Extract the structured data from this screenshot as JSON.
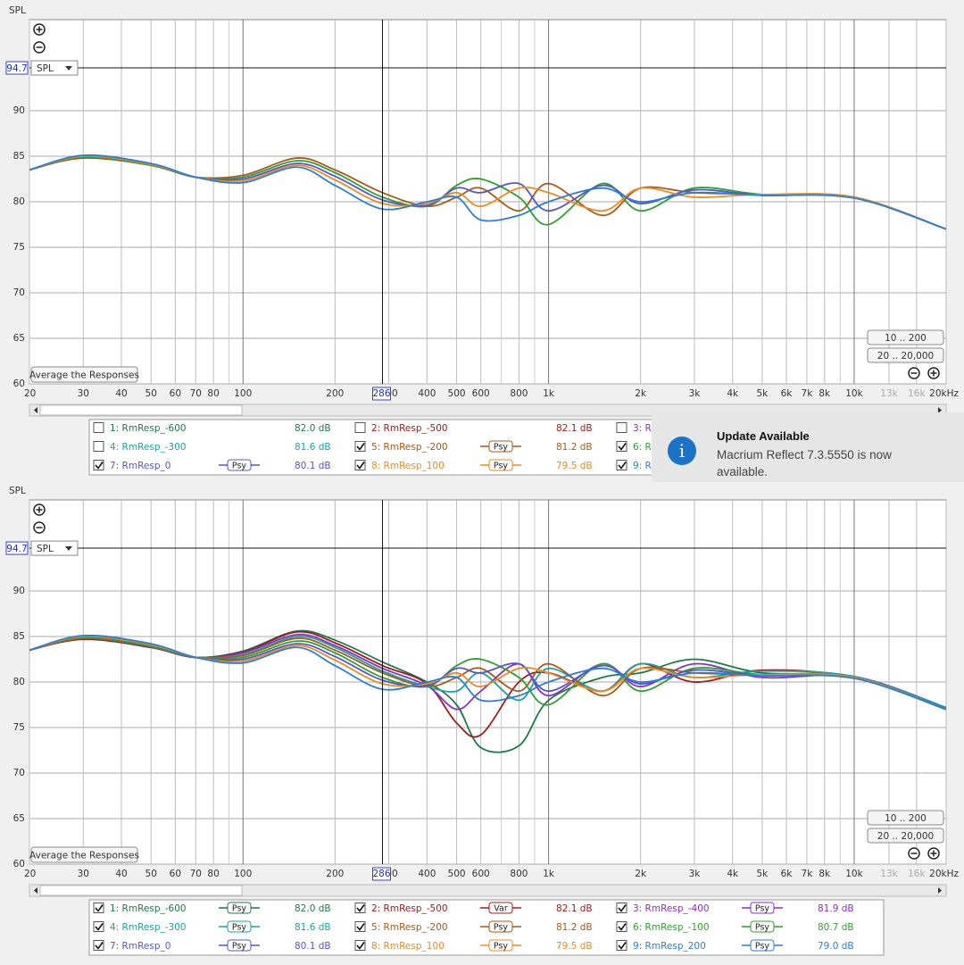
{
  "chart_data": [
    {
      "type": "line",
      "y_label": "SPL",
      "log_x": true,
      "grid": true,
      "xlim": [
        20,
        20000
      ],
      "ylim": [
        60,
        100
      ],
      "xticks": [
        20,
        30,
        40,
        50,
        60,
        70,
        80,
        100,
        200,
        300,
        400,
        500,
        600,
        800,
        {
          "value": 1000,
          "label": "1k"
        },
        {
          "value": 2000,
          "label": "2k"
        },
        {
          "value": 3000,
          "label": "3k"
        },
        {
          "value": 4000,
          "label": "4k"
        },
        {
          "value": 5000,
          "label": "5k"
        },
        {
          "value": 6000,
          "label": "6k"
        },
        {
          "value": 7000,
          "label": "7k"
        },
        {
          "value": 8000,
          "label": "8k"
        },
        {
          "value": 10000,
          "label": "10k"
        },
        {
          "value": 13000,
          "label": "13k"
        },
        {
          "value": 16000,
          "label": "16k"
        },
        {
          "value": 20000,
          "label": "20kHz"
        }
      ],
      "xgrid": [
        90,
        700,
        900,
        9000
      ],
      "yticks": [
        60,
        65,
        70,
        75,
        80,
        85,
        90
      ],
      "cursor": {
        "x": 286,
        "y": 94.7
      },
      "buttons": {
        "y_select": "SPL",
        "average": "Average the Responses",
        "range_low": "10 .. 200",
        "range_full": "20 .. 20,000"
      },
      "x": [
        20,
        30,
        50,
        70,
        100,
        150,
        200,
        286,
        400,
        500,
        600,
        800,
        1000,
        1500,
        2000,
        3000,
        5000,
        10000,
        20000
      ],
      "series": [
        {
          "name": "1: RmResp_-600",
          "color": "#1e7a4a",
          "checked": false,
          "reading": "82.0 dB",
          "values": [
            83.5,
            84.7,
            83.8,
            82.7,
            83.4,
            85.6,
            84.6,
            82.2,
            80,
            77.5,
            72.8,
            73,
            78,
            80.5,
            81,
            82.5,
            81,
            80.6,
            77
          ]
        },
        {
          "name": "2: RmResp_-500",
          "color": "#a01c1c",
          "checked": false,
          "reading": "82.1 dB",
          "values": [
            83.5,
            84.7,
            83.8,
            82.7,
            83.3,
            85.5,
            84.3,
            81.8,
            79.8,
            75.5,
            74.2,
            80,
            81,
            79,
            82,
            80,
            81.3,
            80.5,
            77
          ]
        },
        {
          "name": "3: RmResp_-400",
          "color": "#8b2fc9",
          "checked": false,
          "reading": "81.9 dB",
          "values": [
            83.5,
            84.8,
            83.9,
            82.7,
            83.2,
            85.2,
            84,
            81.5,
            79.6,
            77,
            79,
            82,
            78.5,
            82,
            79.5,
            82,
            80.5,
            80.6,
            77.2
          ]
        },
        {
          "name": "4: RmResp_-300",
          "color": "#1aa3a3",
          "checked": false,
          "reading": "81.6 dB",
          "values": [
            83.5,
            84.8,
            83.9,
            82.7,
            83,
            85,
            83.8,
            81.2,
            79.5,
            79,
            81,
            78,
            81.5,
            79,
            82,
            80.5,
            81.2,
            80.6,
            77.2
          ]
        },
        {
          "name": "5: RmResp_-200",
          "color": "#a85a18",
          "checked": true,
          "smoothing": "Psy",
          "reading": "81.2 dB",
          "values": [
            83.5,
            84.8,
            84,
            82.7,
            82.9,
            84.8,
            83.5,
            81,
            79.5,
            80.5,
            81.5,
            79,
            82,
            78.5,
            81.5,
            81,
            80.8,
            80.5,
            77
          ]
        },
        {
          "name": "6: RmResp_-100",
          "color": "#2fa02f",
          "checked": true,
          "smoothing": "Psy",
          "reading": "80.7 dB",
          "values": [
            83.5,
            84.9,
            84,
            82.7,
            82.7,
            84.5,
            83.2,
            80.5,
            79.5,
            81.8,
            82.5,
            80.5,
            77.5,
            82,
            79,
            81.5,
            80.8,
            80.5,
            77
          ]
        },
        {
          "name": "7: RmResp_0",
          "color": "#5555cc",
          "checked": true,
          "smoothing": "Psy",
          "reading": "80.1 dB",
          "values": [
            83.5,
            85,
            84.1,
            82.7,
            82.5,
            84.2,
            82.8,
            80.2,
            79.6,
            81.5,
            81,
            82,
            79,
            81.8,
            79.8,
            81.3,
            80.7,
            80.5,
            77
          ]
        },
        {
          "name": "8: RmResp_100",
          "color": "#ee8a22",
          "checked": true,
          "smoothing": "Psy",
          "reading": "79.5 dB",
          "values": [
            83.5,
            85,
            84.1,
            82.7,
            82.3,
            84,
            82.4,
            79.8,
            79.8,
            81,
            79.5,
            81.5,
            81,
            79,
            81.5,
            80.5,
            80.8,
            80.5,
            77
          ]
        },
        {
          "name": "9: RmResp_200",
          "color": "#2a7fd4",
          "checked": true,
          "smoothing": "Psy",
          "reading": "79.0 dB",
          "values": [
            83.5,
            85.1,
            84.2,
            82.7,
            82.1,
            83.8,
            81.8,
            79.2,
            80,
            80.5,
            78,
            78.5,
            80,
            81.5,
            80,
            81,
            80.7,
            80.4,
            77
          ]
        }
      ]
    },
    {
      "type": "line",
      "y_label": "SPL",
      "log_x": true,
      "grid": true,
      "xlim": [
        20,
        20000
      ],
      "ylim": [
        60,
        100
      ],
      "xticks": [
        20,
        30,
        40,
        50,
        60,
        70,
        80,
        100,
        200,
        300,
        400,
        500,
        600,
        800,
        {
          "value": 1000,
          "label": "1k"
        },
        {
          "value": 2000,
          "label": "2k"
        },
        {
          "value": 3000,
          "label": "3k"
        },
        {
          "value": 4000,
          "label": "4k"
        },
        {
          "value": 5000,
          "label": "5k"
        },
        {
          "value": 6000,
          "label": "6k"
        },
        {
          "value": 7000,
          "label": "7k"
        },
        {
          "value": 8000,
          "label": "8k"
        },
        {
          "value": 10000,
          "label": "10k"
        },
        {
          "value": 13000,
          "label": "13k"
        },
        {
          "value": 16000,
          "label": "16k"
        },
        {
          "value": 20000,
          "label": "20kHz"
        }
      ],
      "xgrid": [
        90,
        700,
        900,
        9000
      ],
      "yticks": [
        60,
        65,
        70,
        75,
        80,
        85,
        90
      ],
      "cursor": {
        "x": 286,
        "y": 94.7
      },
      "buttons": {
        "y_select": "SPL",
        "average": "Average the Responses",
        "range_low": "10 .. 200",
        "range_full": "20 .. 20,000"
      },
      "x": [
        20,
        30,
        50,
        70,
        100,
        150,
        200,
        286,
        400,
        500,
        600,
        800,
        1000,
        1500,
        2000,
        3000,
        5000,
        10000,
        20000
      ],
      "series": [
        {
          "name": "1: RmResp_-600",
          "color": "#1e7a4a",
          "checked": true,
          "smoothing": "Psy",
          "reading": "82.0 dB",
          "values": [
            83.5,
            84.7,
            83.8,
            82.7,
            83.4,
            85.6,
            84.6,
            82.2,
            80,
            77.5,
            72.8,
            73,
            78,
            80.5,
            81,
            82.5,
            81,
            80.6,
            77
          ]
        },
        {
          "name": "2: RmResp_-500",
          "color": "#a01c1c",
          "checked": true,
          "smoothing": "Var",
          "reading": "82.1 dB",
          "values": [
            83.5,
            84.7,
            83.8,
            82.7,
            83.3,
            85.5,
            84.3,
            81.8,
            79.8,
            75.5,
            74.2,
            80,
            81,
            79,
            82,
            80,
            81.3,
            80.5,
            77
          ]
        },
        {
          "name": "3: RmResp_-400",
          "color": "#8b2fc9",
          "checked": true,
          "smoothing": "Psy",
          "reading": "81.9 dB",
          "values": [
            83.5,
            84.8,
            83.9,
            82.7,
            83.2,
            85.2,
            84,
            81.5,
            79.6,
            77,
            79,
            82,
            78.5,
            82,
            79.5,
            82,
            80.5,
            80.6,
            77.2
          ]
        },
        {
          "name": "4: RmResp_-300",
          "color": "#1aa3a3",
          "checked": true,
          "smoothing": "Psy",
          "reading": "81.6 dB",
          "values": [
            83.5,
            84.8,
            83.9,
            82.7,
            83,
            85,
            83.8,
            81.2,
            79.5,
            79,
            81,
            78,
            81.5,
            79,
            82,
            80.5,
            81.2,
            80.6,
            77.2
          ]
        },
        {
          "name": "5: RmResp_-200",
          "color": "#a85a18",
          "checked": true,
          "smoothing": "Psy",
          "reading": "81.2 dB",
          "values": [
            83.5,
            84.8,
            84,
            82.7,
            82.9,
            84.8,
            83.5,
            81,
            79.5,
            80.5,
            81.5,
            79,
            82,
            78.5,
            81.5,
            81,
            80.8,
            80.5,
            77
          ]
        },
        {
          "name": "6: RmResp_-100",
          "color": "#2fa02f",
          "checked": true,
          "smoothing": "Psy",
          "reading": "80.7 dB",
          "values": [
            83.5,
            84.9,
            84,
            82.7,
            82.7,
            84.5,
            83.2,
            80.5,
            79.5,
            81.8,
            82.5,
            80.5,
            77.5,
            82,
            79,
            81.5,
            80.8,
            80.5,
            77
          ]
        },
        {
          "name": "7: RmResp_0",
          "color": "#5555cc",
          "checked": true,
          "smoothing": "Psy",
          "reading": "80.1 dB",
          "values": [
            83.5,
            85,
            84.1,
            82.7,
            82.5,
            84.2,
            82.8,
            80.2,
            79.6,
            81.5,
            81,
            82,
            79,
            81.8,
            79.8,
            81.3,
            80.7,
            80.5,
            77
          ]
        },
        {
          "name": "8: RmResp_100",
          "color": "#ee8a22",
          "checked": true,
          "smoothing": "Psy",
          "reading": "79.5 dB",
          "values": [
            83.5,
            85,
            84.1,
            82.7,
            82.3,
            84,
            82.4,
            79.8,
            79.8,
            81,
            79.5,
            81.5,
            81,
            79,
            81.5,
            80.5,
            80.8,
            80.5,
            77
          ]
        },
        {
          "name": "9: RmResp_200",
          "color": "#2a7fd4",
          "checked": true,
          "smoothing": "Psy",
          "reading": "79.0 dB",
          "values": [
            83.5,
            85.1,
            84.2,
            82.7,
            82.1,
            83.8,
            81.8,
            79.2,
            80,
            80.5,
            78,
            78.5,
            80,
            81.5,
            80,
            81,
            80.7,
            80.4,
            77
          ]
        }
      ]
    }
  ],
  "notification": {
    "title": "Update Available",
    "message": "Macrium Reflect 7.3.5550 is now available."
  }
}
